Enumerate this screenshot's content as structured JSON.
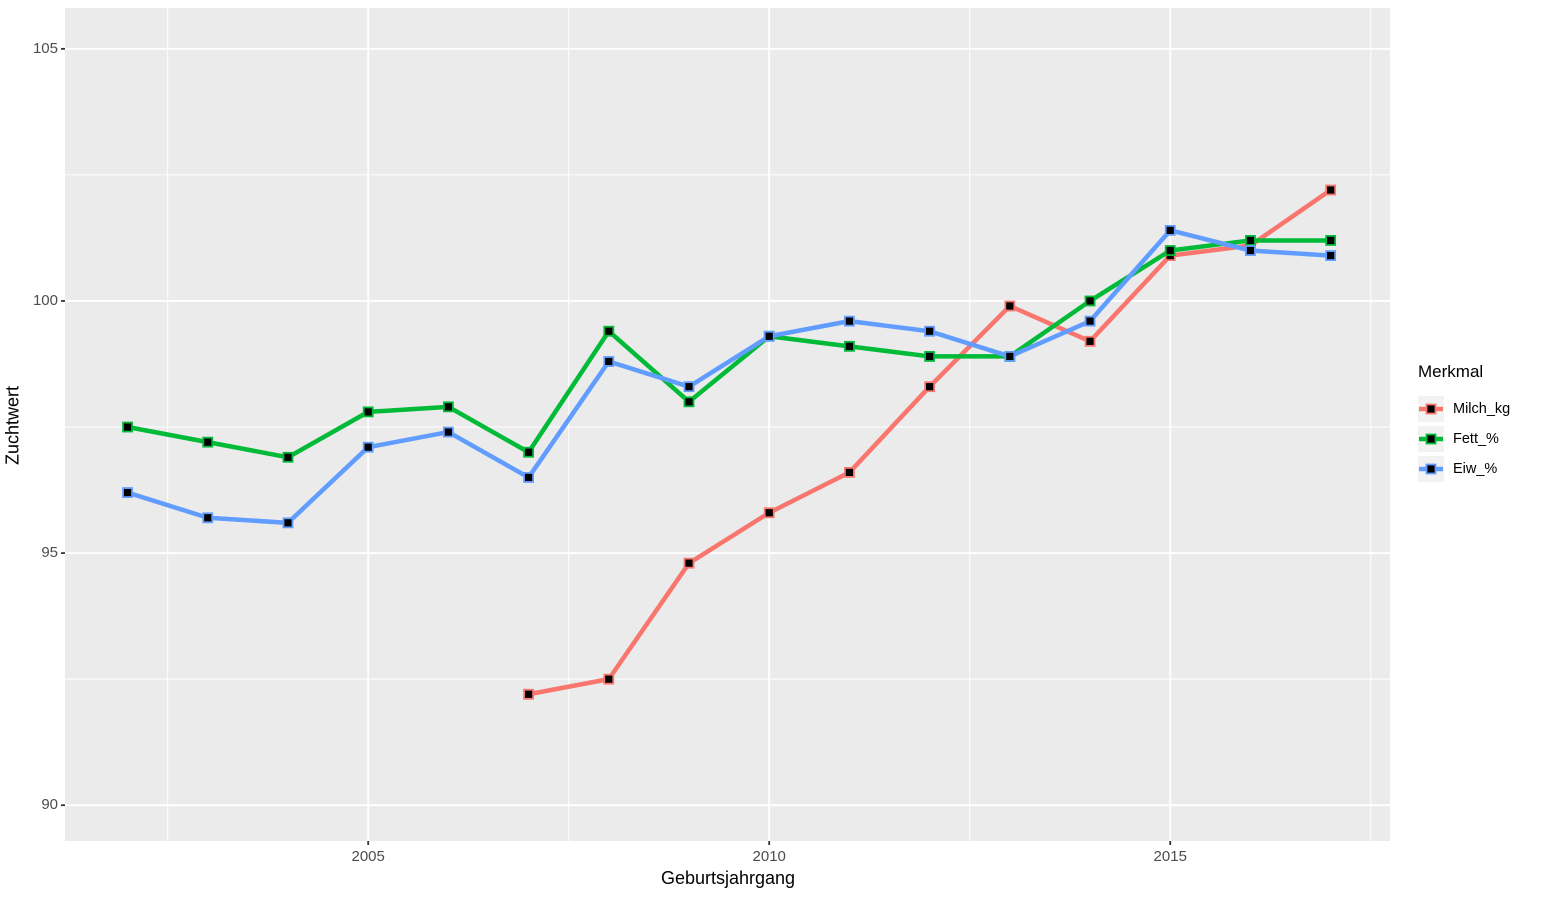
{
  "chart_data": {
    "type": "line",
    "title": "",
    "xlabel": "Geburtsjahrgang",
    "ylabel": "Zuchtwert",
    "legend_title": "Merkmal",
    "legend_position": "right",
    "marker": "black-square",
    "grid": "on",
    "panel_background": "#EBEBEB",
    "grid_color": "#FFFFFF",
    "legend_key_background": "#F2F2F2",
    "axis_text_color": "#4D4D4D",
    "tick_mark_color": "#333333",
    "x_ticks": [
      2005,
      2010,
      2015
    ],
    "x_minor_gridlines": [
      2002.5,
      2007.5,
      2012.5,
      2017.5
    ],
    "y_ticks": [
      90,
      95,
      100,
      105
    ],
    "y_minor_gridlines": [
      92.5,
      97.5,
      102.5
    ],
    "x_domain": [
      2001.22,
      2017.74
    ],
    "y_domain": [
      89.29,
      105.81
    ],
    "series": [
      {
        "name": "Milch_kg",
        "color": "#F8766D",
        "x": [
          2007,
          2008,
          2009,
          2010,
          2011,
          2012,
          2013,
          2014,
          2015,
          2016,
          2017
        ],
        "values": [
          92.2,
          92.5,
          94.8,
          95.8,
          96.6,
          98.3,
          99.9,
          99.2,
          100.9,
          101.1,
          102.2
        ]
      },
      {
        "name": "Fett_%",
        "color": "#00BA38",
        "x": [
          2002,
          2003,
          2004,
          2005,
          2006,
          2007,
          2008,
          2009,
          2010,
          2011,
          2012,
          2013,
          2014,
          2015,
          2016,
          2017
        ],
        "values": [
          97.5,
          97.2,
          96.9,
          97.8,
          97.9,
          97.0,
          99.4,
          98.0,
          99.3,
          99.1,
          98.9,
          98.9,
          100.0,
          101.0,
          101.2,
          101.2
        ]
      },
      {
        "name": "Eiw_%",
        "color": "#619CFF",
        "x": [
          2002,
          2003,
          2004,
          2005,
          2006,
          2007,
          2008,
          2009,
          2010,
          2011,
          2012,
          2013,
          2014,
          2015,
          2016,
          2017
        ],
        "values": [
          96.2,
          95.7,
          95.6,
          97.1,
          97.4,
          96.5,
          98.8,
          98.3,
          99.3,
          99.6,
          99.4,
          98.9,
          99.6,
          101.4,
          101.0,
          100.9
        ]
      }
    ]
  }
}
